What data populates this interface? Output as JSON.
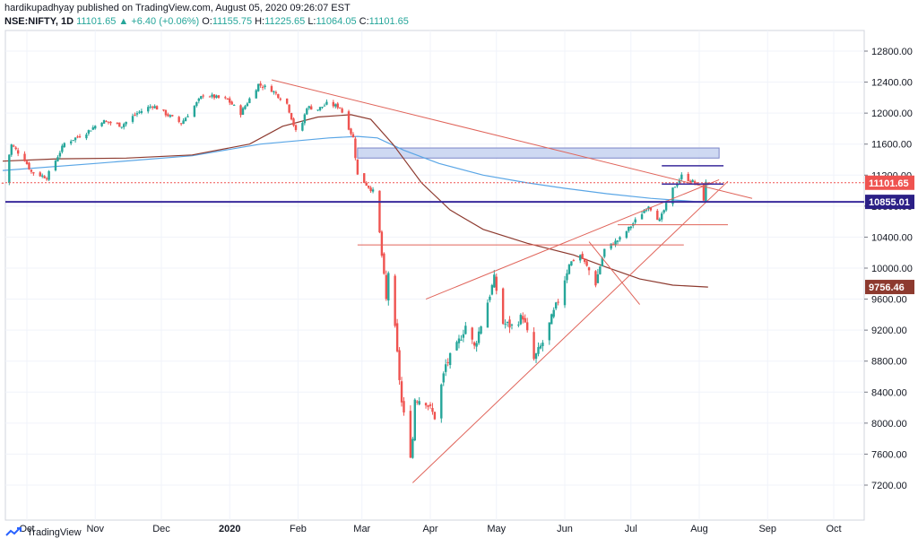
{
  "header": {
    "line1": "hardikupadhyay published on TradingView.com, August 05, 2020 09:26:07 EST",
    "symbol": "NSE:NIFTY, 1D",
    "last": "11101.65",
    "change": "▲ +6.40 (+0.06%)",
    "o_label": "O:",
    "o": "11155.75",
    "h_label": "H:",
    "h": "11225.65",
    "l_label": "L:",
    "l": "11064.05",
    "c_label": "C:",
    "c": "11101.65"
  },
  "footer": {
    "brand": "TradingView"
  },
  "colors": {
    "up": "#26a69a",
    "down": "#ef5350",
    "ma_blue": "#5aa6e6",
    "ma_brown": "#8d3a2f",
    "trend": "#e0645a",
    "purple": "#3a2a9c",
    "zone": "#c6d2f0"
  },
  "chart_data": {
    "type": "candlestick",
    "symbol": "NSE:NIFTY",
    "ylim": [
      7100,
      13000
    ],
    "y_ticks": [
      "12800.00",
      "12400.00",
      "12000.00",
      "11600.00",
      "11200.00",
      "10800.00",
      "10400.00",
      "10000.00",
      "9600.00",
      "9200.00",
      "8800.00",
      "8400.00",
      "8000.00",
      "7600.00",
      "7200.00"
    ],
    "x_ticks": [
      "Oct",
      "Nov",
      "Dec",
      "2020",
      "Feb",
      "Mar",
      "Apr",
      "May",
      "Jun",
      "Jul",
      "Aug",
      "Sep",
      "Oct"
    ],
    "price_labels": [
      {
        "value": "11101.65",
        "y": 11101.65,
        "color": "#ef5350"
      },
      {
        "value": "10855.01",
        "y": 10855.01,
        "color": "#2b1f86"
      },
      {
        "value": "9756.46",
        "y": 9756.46,
        "color": "#8d3a2f"
      }
    ],
    "anchors": [
      [
        "2019-09-20",
        11100
      ],
      [
        "2019-09-24",
        11590
      ],
      [
        "2019-09-30",
        11400
      ],
      [
        "2019-10-03",
        11240
      ],
      [
        "2019-10-10",
        11170
      ],
      [
        "2019-10-18",
        11610
      ],
      [
        "2019-10-28",
        11750
      ],
      [
        "2019-11-04",
        11900
      ],
      [
        "2019-11-13",
        11840
      ],
      [
        "2019-11-20",
        12000
      ],
      [
        "2019-11-27",
        12100
      ],
      [
        "2019-12-03",
        11990
      ],
      [
        "2019-12-10",
        11870
      ],
      [
        "2019-12-20",
        12240
      ],
      [
        "2019-12-31",
        12170
      ],
      [
        "2020-01-06",
        12000
      ],
      [
        "2020-01-14",
        12370
      ],
      [
        "2020-01-20",
        12300
      ],
      [
        "2020-01-27",
        12120
      ],
      [
        "2020-02-01",
        11670
      ],
      [
        "2020-02-05",
        12080
      ],
      [
        "2020-02-10",
        12050
      ],
      [
        "2020-02-14",
        12120
      ],
      [
        "2020-02-20",
        12080
      ],
      [
        "2020-02-26",
        11680
      ],
      [
        "2020-02-28",
        11200
      ],
      [
        "2020-03-06",
        10990
      ],
      [
        "2020-03-09",
        10450
      ],
      [
        "2020-03-12",
        9580
      ],
      [
        "2020-03-13",
        9950
      ],
      [
        "2020-03-16",
        9200
      ],
      [
        "2020-03-19",
        8260
      ],
      [
        "2020-03-23",
        7610
      ],
      [
        "2020-03-24",
        7800
      ],
      [
        "2020-03-25",
        8320
      ],
      [
        "2020-03-30",
        8280
      ],
      [
        "2020-04-03",
        8080
      ],
      [
        "2020-04-08",
        8750
      ],
      [
        "2020-04-13",
        8990
      ],
      [
        "2020-04-17",
        9260
      ],
      [
        "2020-04-21",
        8980
      ],
      [
        "2020-04-30",
        9860
      ],
      [
        "2020-05-04",
        9290
      ],
      [
        "2020-05-08",
        9250
      ],
      [
        "2020-05-13",
        9380
      ],
      [
        "2020-05-18",
        8820
      ],
      [
        "2020-05-22",
        9040
      ],
      [
        "2020-05-29",
        9580
      ],
      [
        "2020-06-03",
        10060
      ],
      [
        "2020-06-08",
        10170
      ],
      [
        "2020-06-12",
        9970
      ],
      [
        "2020-06-15",
        9810
      ],
      [
        "2020-06-19",
        10240
      ],
      [
        "2020-06-26",
        10380
      ],
      [
        "2020-07-03",
        10610
      ],
      [
        "2020-07-09",
        10810
      ],
      [
        "2020-07-14",
        10610
      ],
      [
        "2020-07-20",
        11020
      ],
      [
        "2020-07-24",
        11190
      ],
      [
        "2020-07-30",
        11100
      ],
      [
        "2020-07-31",
        11070
      ],
      [
        "2020-08-03",
        10890
      ],
      [
        "2020-08-04",
        11095
      ],
      [
        "2020-08-05",
        11102
      ]
    ],
    "ma_blue": [
      [
        "2019-09-20",
        11260
      ],
      [
        "2019-11-01",
        11350
      ],
      [
        "2019-12-15",
        11450
      ],
      [
        "2020-01-15",
        11600
      ],
      [
        "2020-02-15",
        11680
      ],
      [
        "2020-02-28",
        11700
      ],
      [
        "2020-03-08",
        11680
      ],
      [
        "2020-03-20",
        11520
      ],
      [
        "2020-04-05",
        11350
      ],
      [
        "2020-04-25",
        11200
      ],
      [
        "2020-05-15",
        11100
      ],
      [
        "2020-06-01",
        11030
      ],
      [
        "2020-06-20",
        10960
      ],
      [
        "2020-07-10",
        10900
      ],
      [
        "2020-07-30",
        10860
      ],
      [
        "2020-08-05",
        10855
      ]
    ],
    "ma_brown": [
      [
        "2019-09-20",
        11380
      ],
      [
        "2019-10-15",
        11410
      ],
      [
        "2019-11-15",
        11420
      ],
      [
        "2019-12-15",
        11460
      ],
      [
        "2020-01-10",
        11600
      ],
      [
        "2020-01-25",
        11830
      ],
      [
        "2020-02-10",
        11950
      ],
      [
        "2020-02-25",
        11980
      ],
      [
        "2020-03-05",
        11920
      ],
      [
        "2020-03-15",
        11600
      ],
      [
        "2020-03-28",
        11100
      ],
      [
        "2020-04-10",
        10750
      ],
      [
        "2020-04-25",
        10500
      ],
      [
        "2020-05-15",
        10320
      ],
      [
        "2020-06-05",
        10170
      ],
      [
        "2020-06-20",
        10010
      ],
      [
        "2020-07-05",
        9860
      ],
      [
        "2020-07-20",
        9780
      ],
      [
        "2020-08-05",
        9756
      ]
    ],
    "drawings": {
      "trend_lines": [
        [
          [
            "2020-01-20",
            12430
          ],
          [
            "2020-08-25",
            10900
          ]
        ],
        [
          [
            "2020-03-24",
            7230
          ],
          [
            "2020-08-14",
            11120
          ]
        ],
        [
          [
            "2020-03-30",
            9600
          ],
          [
            "2020-08-10",
            11140
          ]
        ],
        [
          [
            "2020-06-12",
            10340
          ],
          [
            "2020-07-05",
            9530
          ]
        ]
      ],
      "horizontal_lines": [
        {
          "from": "2020-02-28",
          "to": "2020-07-25",
          "y": 10300
        },
        {
          "from": "2020-06-25",
          "to": "2020-08-14",
          "y": 10560
        },
        {
          "from": "2020-07-15",
          "to": "2020-08-12",
          "y": 11320
        },
        {
          "from": "2020-07-15",
          "to": "2020-08-12",
          "y": 11085
        }
      ],
      "zone": {
        "from": "2020-02-28",
        "to": "2020-08-10",
        "y1": 11420,
        "y2": 11550
      }
    }
  }
}
